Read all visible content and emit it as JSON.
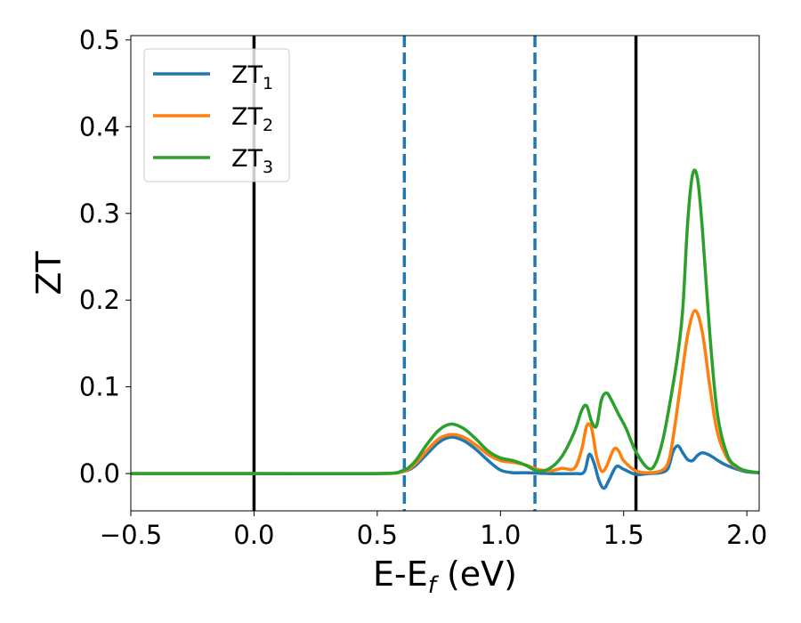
{
  "chart_data": {
    "type": "line",
    "xlabel": "E-E",
    "xlabel_subscript": "f",
    "xlabel_unit": " (eV)",
    "ylabel": "ZT",
    "xlim": [
      -0.5,
      2.05
    ],
    "ylim": [
      -0.043,
      0.505
    ],
    "xticks": [
      -0.5,
      0.0,
      0.5,
      1.0,
      1.5,
      2.0
    ],
    "xtick_labels": [
      "−0.5",
      "0.0",
      "0.5",
      "1.0",
      "1.5",
      "2.0"
    ],
    "yticks": [
      0.0,
      0.1,
      0.2,
      0.3,
      0.4,
      0.5
    ],
    "ytick_labels": [
      "0.0",
      "0.1",
      "0.2",
      "0.3",
      "0.4",
      "0.5"
    ],
    "grid": false,
    "legend_position": "top-left",
    "vlines": [
      {
        "x": 0.0,
        "style": "solid",
        "color": "#000000"
      },
      {
        "x": 0.61,
        "style": "dashed",
        "color": "#1f77b4"
      },
      {
        "x": 1.14,
        "style": "dashed",
        "color": "#1f77b4"
      },
      {
        "x": 1.55,
        "style": "solid",
        "color": "#000000"
      }
    ],
    "series": [
      {
        "name": "ZT",
        "name_subscript": "1",
        "color": "#1f77b4",
        "points": [
          [
            -0.5,
            0
          ],
          [
            0.0,
            0
          ],
          [
            0.5,
            0
          ],
          [
            0.6,
            0.002
          ],
          [
            0.65,
            0.008
          ],
          [
            0.7,
            0.022
          ],
          [
            0.75,
            0.036
          ],
          [
            0.8,
            0.042
          ],
          [
            0.85,
            0.038
          ],
          [
            0.9,
            0.028
          ],
          [
            0.95,
            0.015
          ],
          [
            1.0,
            0.004
          ],
          [
            1.05,
            0.001
          ],
          [
            1.1,
            0.001
          ],
          [
            1.2,
            0.0
          ],
          [
            1.3,
            0.0
          ],
          [
            1.34,
            0.002
          ],
          [
            1.36,
            0.022
          ],
          [
            1.38,
            0.012
          ],
          [
            1.4,
            -0.008
          ],
          [
            1.42,
            -0.017
          ],
          [
            1.44,
            -0.008
          ],
          [
            1.47,
            0.008
          ],
          [
            1.5,
            0.005
          ],
          [
            1.55,
            -0.001
          ],
          [
            1.6,
            0.0
          ],
          [
            1.65,
            0.001
          ],
          [
            1.68,
            0.006
          ],
          [
            1.7,
            0.025
          ],
          [
            1.72,
            0.032
          ],
          [
            1.74,
            0.024
          ],
          [
            1.76,
            0.016
          ],
          [
            1.78,
            0.015
          ],
          [
            1.8,
            0.021
          ],
          [
            1.82,
            0.024
          ],
          [
            1.85,
            0.021
          ],
          [
            1.9,
            0.012
          ],
          [
            1.95,
            0.006
          ],
          [
            2.0,
            0.002
          ],
          [
            2.05,
            0.001
          ]
        ]
      },
      {
        "name": "ZT",
        "name_subscript": "2",
        "color": "#ff7f0e",
        "points": [
          [
            -0.5,
            0
          ],
          [
            0.0,
            0
          ],
          [
            0.5,
            0
          ],
          [
            0.6,
            0.002
          ],
          [
            0.65,
            0.01
          ],
          [
            0.7,
            0.026
          ],
          [
            0.75,
            0.04
          ],
          [
            0.8,
            0.045
          ],
          [
            0.85,
            0.042
          ],
          [
            0.9,
            0.033
          ],
          [
            0.95,
            0.022
          ],
          [
            1.0,
            0.015
          ],
          [
            1.05,
            0.013
          ],
          [
            1.1,
            0.01
          ],
          [
            1.15,
            0.005
          ],
          [
            1.2,
            0.003
          ],
          [
            1.25,
            0.006
          ],
          [
            1.3,
            0.006
          ],
          [
            1.33,
            0.028
          ],
          [
            1.35,
            0.055
          ],
          [
            1.37,
            0.052
          ],
          [
            1.39,
            0.02
          ],
          [
            1.41,
            0.003
          ],
          [
            1.43,
            0.008
          ],
          [
            1.46,
            0.028
          ],
          [
            1.48,
            0.026
          ],
          [
            1.5,
            0.015
          ],
          [
            1.55,
            0.003
          ],
          [
            1.6,
            0.001
          ],
          [
            1.65,
            0.003
          ],
          [
            1.68,
            0.012
          ],
          [
            1.7,
            0.04
          ],
          [
            1.73,
            0.1
          ],
          [
            1.76,
            0.16
          ],
          [
            1.79,
            0.188
          ],
          [
            1.82,
            0.162
          ],
          [
            1.85,
            0.1
          ],
          [
            1.88,
            0.048
          ],
          [
            1.92,
            0.018
          ],
          [
            1.96,
            0.007
          ],
          [
            2.0,
            0.003
          ],
          [
            2.05,
            0.001
          ]
        ]
      },
      {
        "name": "ZT",
        "name_subscript": "3",
        "color": "#2ca02c",
        "points": [
          [
            -0.5,
            0
          ],
          [
            0.0,
            0
          ],
          [
            0.5,
            0
          ],
          [
            0.6,
            0.003
          ],
          [
            0.65,
            0.013
          ],
          [
            0.7,
            0.033
          ],
          [
            0.75,
            0.05
          ],
          [
            0.8,
            0.057
          ],
          [
            0.85,
            0.052
          ],
          [
            0.9,
            0.04
          ],
          [
            0.95,
            0.026
          ],
          [
            1.0,
            0.018
          ],
          [
            1.05,
            0.015
          ],
          [
            1.1,
            0.01
          ],
          [
            1.15,
            0.003
          ],
          [
            1.2,
            0.006
          ],
          [
            1.25,
            0.02
          ],
          [
            1.3,
            0.048
          ],
          [
            1.33,
            0.073
          ],
          [
            1.35,
            0.078
          ],
          [
            1.37,
            0.06
          ],
          [
            1.39,
            0.055
          ],
          [
            1.41,
            0.085
          ],
          [
            1.43,
            0.093
          ],
          [
            1.45,
            0.085
          ],
          [
            1.48,
            0.068
          ],
          [
            1.51,
            0.052
          ],
          [
            1.55,
            0.025
          ],
          [
            1.6,
            0.006
          ],
          [
            1.63,
            0.012
          ],
          [
            1.66,
            0.04
          ],
          [
            1.69,
            0.085
          ],
          [
            1.72,
            0.138
          ],
          [
            1.74,
            0.19
          ],
          [
            1.76,
            0.29
          ],
          [
            1.78,
            0.345
          ],
          [
            1.8,
            0.34
          ],
          [
            1.82,
            0.28
          ],
          [
            1.85,
            0.16
          ],
          [
            1.88,
            0.07
          ],
          [
            1.92,
            0.022
          ],
          [
            1.96,
            0.008
          ],
          [
            2.0,
            0.003
          ],
          [
            2.05,
            0.001
          ]
        ]
      }
    ]
  }
}
